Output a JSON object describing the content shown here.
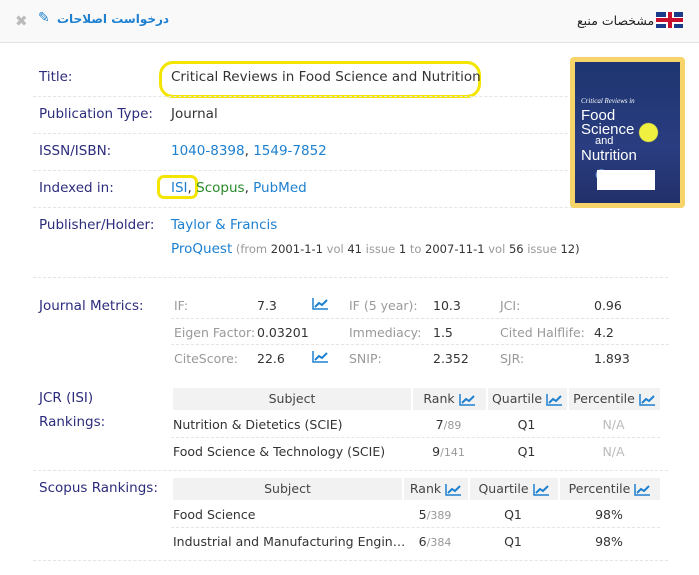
{
  "header": {
    "title": "مشخصات منبع",
    "flag_icon": "uk-flag-icon",
    "edit_request": "درخواست اصلاحات",
    "edit_icon": "pencil-icon",
    "close_icon": "close-icon"
  },
  "details": {
    "title_label": "Title:",
    "title_value": "Critical Reviews in Food Science and Nutrition",
    "type_label": "Publication Type:",
    "type_value": "Journal",
    "issn_label": "ISSN/ISBN:",
    "issn_1": "1040-8398",
    "issn_sep": ",",
    "issn_2": "1549-7852",
    "indexed_label": "Indexed in:",
    "indexed": [
      "ISI",
      ",",
      "Scopus",
      ",",
      "PubMed"
    ],
    "publisher_label": "Publisher/Holder:",
    "publisher": "Taylor & Francis",
    "proquest": "ProQuest",
    "proquest_range": {
      "open": "(from",
      "from": "2001-1-1",
      "vol_word": "vol",
      "vol_from": "41",
      "issue_word": "issue",
      "issue_from": "1",
      "to": "to",
      "to_date": "2007-11-1",
      "vol_word2": "vol",
      "vol_to": "56",
      "issue_word2": "issue",
      "issue_to": "12)"
    }
  },
  "cover": {
    "lines": [
      "Critical Reviews in",
      "Food",
      "Science",
      "and",
      "Nutrition"
    ]
  },
  "metrics": {
    "label": "Journal Metrics:",
    "items": [
      {
        "k": "IF:",
        "v": "7.3",
        "trend": true
      },
      {
        "k": "IF (5 year):",
        "v": "10.3"
      },
      {
        "k": "JCI:",
        "v": "0.96"
      },
      {
        "k": "Eigen Factor:",
        "v": "0.03201"
      },
      {
        "k": "Immediacy:",
        "v": "1.5"
      },
      {
        "k": "Cited Halflife:",
        "v": "4.2"
      },
      {
        "k": "CiteScore:",
        "v": "22.6",
        "trend": true
      },
      {
        "k": "SNIP:",
        "v": "2.352"
      },
      {
        "k": "SJR:",
        "v": "1.893"
      }
    ]
  },
  "jcr": {
    "label_1": "JCR (ISI)",
    "label_2": "Rankings:",
    "headers": [
      "Subject",
      "Rank",
      "Quartile",
      "Percentile"
    ],
    "rows": [
      {
        "subject": "Nutrition & Dietetics (SCIE)",
        "rank": "7",
        "total": "/89",
        "quartile": "Q1",
        "percentile": "N/A"
      },
      {
        "subject": "Food Science & Technology (SCIE)",
        "rank": "9",
        "total": "/141",
        "quartile": "Q1",
        "percentile": "N/A"
      }
    ]
  },
  "scopus": {
    "label": "Scopus Rankings:",
    "headers": [
      "Subject",
      "Rank",
      "Quartile",
      "Percentile"
    ],
    "rows": [
      {
        "subject": "Food Science",
        "rank": "5",
        "total": "/389",
        "quartile": "Q1",
        "percentile": "98%"
      },
      {
        "subject": "Industrial and Manufacturing Engin…",
        "rank": "6",
        "total": "/384",
        "quartile": "Q1",
        "percentile": "98%"
      }
    ]
  },
  "colors": {
    "label": "#2c2c7c",
    "link": "#1e80d0",
    "highlight": "#f4e500",
    "scopus": "#2a8a2a"
  }
}
